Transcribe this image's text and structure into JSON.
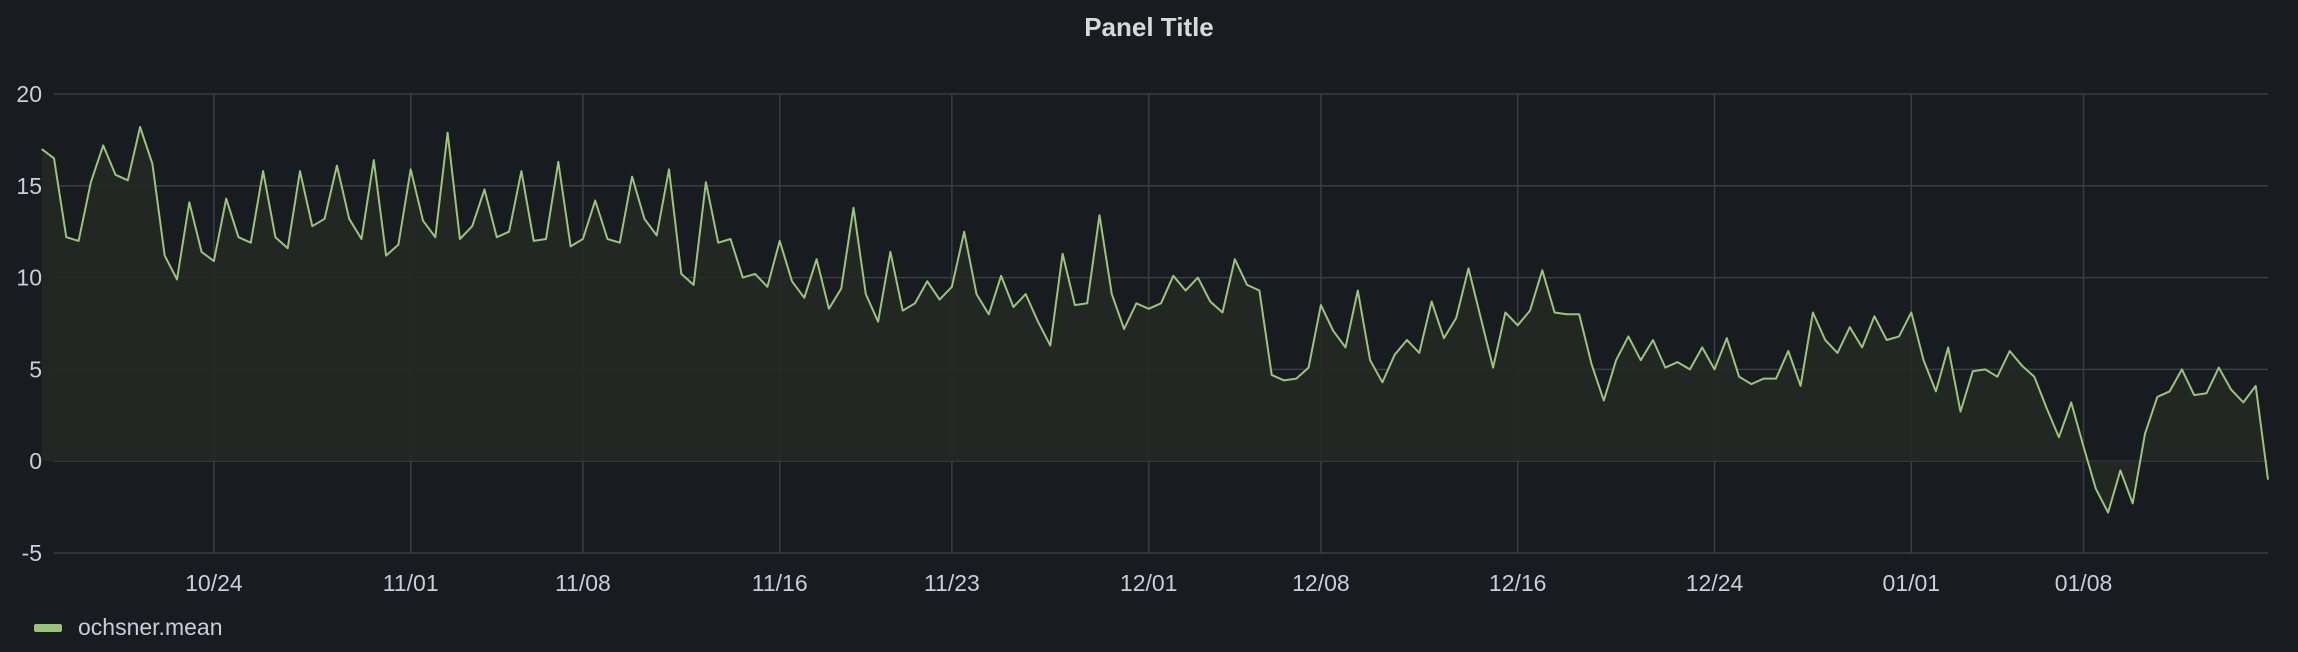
{
  "panel": {
    "title": "Panel Title"
  },
  "colors": {
    "series": "#9ac47a",
    "fill": "#252924",
    "grid": "#3a3d42",
    "background": "#181b1f",
    "text": "#ccccdc"
  },
  "chart_data": {
    "type": "area",
    "title": "Panel Title",
    "xlabel": "",
    "ylabel": "",
    "x_ticks": [
      "10/24",
      "11/01",
      "11/08",
      "11/16",
      "11/23",
      "12/01",
      "12/08",
      "12/16",
      "12/24",
      "01/01",
      "01/08"
    ],
    "y_ticks": [
      "20",
      "15",
      "10",
      "5",
      "0",
      "-5"
    ],
    "ylim": [
      -5,
      20
    ],
    "xlim": [
      "2022-10-17T12:00",
      "2023-01-15T12:00"
    ],
    "grid": true,
    "legend": "bottom-left",
    "series": [
      {
        "name": "ochsner.mean",
        "points": [
          [
            "2022-10-17",
            17
          ],
          [
            "2022-10-17T12:00",
            16.5
          ],
          [
            "2022-10-18",
            12.2
          ],
          [
            "2022-10-18T12:00",
            12
          ],
          [
            "2022-10-19",
            15.2
          ],
          [
            "2022-10-19T12:00",
            17.2
          ],
          [
            "2022-10-20",
            15.6
          ],
          [
            "2022-10-20T12:00",
            15.3
          ],
          [
            "2022-10-21",
            18.2
          ],
          [
            "2022-10-21T12:00",
            16.2
          ],
          [
            "2022-10-22",
            11.2
          ],
          [
            "2022-10-22T12:00",
            9.9
          ],
          [
            "2022-10-23",
            14.1
          ],
          [
            "2022-10-23T12:00",
            11.4
          ],
          [
            "2022-10-24",
            10.9
          ],
          [
            "2022-10-24T12:00",
            14.3
          ],
          [
            "2022-10-25",
            12.2
          ],
          [
            "2022-10-25T12:00",
            11.9
          ],
          [
            "2022-10-26",
            15.8
          ],
          [
            "2022-10-26T12:00",
            12.2
          ],
          [
            "2022-10-27",
            11.6
          ],
          [
            "2022-10-27T12:00",
            15.8
          ],
          [
            "2022-10-28",
            12.8
          ],
          [
            "2022-10-28T12:00",
            13.2
          ],
          [
            "2022-10-29",
            16.1
          ],
          [
            "2022-10-29T12:00",
            13.2
          ],
          [
            "2022-10-30",
            12.1
          ],
          [
            "2022-10-30T12:00",
            16.4
          ],
          [
            "2022-10-31",
            11.2
          ],
          [
            "2022-10-31T12:00",
            11.8
          ],
          [
            "2022-11-01",
            15.9
          ],
          [
            "2022-11-01T12:00",
            13.1
          ],
          [
            "2022-11-02",
            12.2
          ],
          [
            "2022-11-02T12:00",
            17.9
          ],
          [
            "2022-11-03",
            12.1
          ],
          [
            "2022-11-03T12:00",
            12.8
          ],
          [
            "2022-11-04",
            14.8
          ],
          [
            "2022-11-04T12:00",
            12.2
          ],
          [
            "2022-11-05",
            12.5
          ],
          [
            "2022-11-05T12:00",
            15.8
          ],
          [
            "2022-11-06",
            12
          ],
          [
            "2022-11-06T12:00",
            12.1
          ],
          [
            "2022-11-07",
            16.3
          ],
          [
            "2022-11-07T12:00",
            11.7
          ],
          [
            "2022-11-08",
            12.1
          ],
          [
            "2022-11-08T12:00",
            14.2
          ],
          [
            "2022-11-09",
            12.1
          ],
          [
            "2022-11-09T12:00",
            11.9
          ],
          [
            "2022-11-10",
            15.5
          ],
          [
            "2022-11-10T12:00",
            13.2
          ],
          [
            "2022-11-11",
            12.3
          ],
          [
            "2022-11-11T12:00",
            15.9
          ],
          [
            "2022-11-12",
            10.2
          ],
          [
            "2022-11-12T12:00",
            9.6
          ],
          [
            "2022-11-13",
            15.2
          ],
          [
            "2022-11-13T12:00",
            11.9
          ],
          [
            "2022-11-14",
            12.1
          ],
          [
            "2022-11-14T12:00",
            10
          ],
          [
            "2022-11-15",
            10.2
          ],
          [
            "2022-11-15T12:00",
            9.5
          ],
          [
            "2022-11-16",
            12
          ],
          [
            "2022-11-16T12:00",
            9.8
          ],
          [
            "2022-11-17",
            8.9
          ],
          [
            "2022-11-17T12:00",
            11
          ],
          [
            "2022-11-18",
            8.3
          ],
          [
            "2022-11-18T12:00",
            9.4
          ],
          [
            "2022-11-19",
            13.8
          ],
          [
            "2022-11-19T12:00",
            9.1
          ],
          [
            "2022-11-20",
            7.6
          ],
          [
            "2022-11-20T12:00",
            11.4
          ],
          [
            "2022-11-21",
            8.2
          ],
          [
            "2022-11-21T12:00",
            8.6
          ],
          [
            "2022-11-22",
            9.8
          ],
          [
            "2022-11-22T12:00",
            8.8
          ],
          [
            "2022-11-23",
            9.5
          ],
          [
            "2022-11-23T12:00",
            12.5
          ],
          [
            "2022-11-24",
            9.1
          ],
          [
            "2022-11-24T12:00",
            8
          ],
          [
            "2022-11-25",
            10.1
          ],
          [
            "2022-11-25T12:00",
            8.4
          ],
          [
            "2022-11-26",
            9.1
          ],
          [
            "2022-11-26T12:00",
            7.6
          ],
          [
            "2022-11-27",
            6.3
          ],
          [
            "2022-11-27T12:00",
            11.3
          ],
          [
            "2022-11-28",
            8.5
          ],
          [
            "2022-11-28T12:00",
            8.6
          ],
          [
            "2022-11-29",
            13.4
          ],
          [
            "2022-11-29T12:00",
            9.1
          ],
          [
            "2022-11-30",
            7.2
          ],
          [
            "2022-11-30T12:00",
            8.6
          ],
          [
            "2022-12-01",
            8.3
          ],
          [
            "2022-12-01T12:00",
            8.6
          ],
          [
            "2022-12-02",
            10.1
          ],
          [
            "2022-12-02T12:00",
            9.3
          ],
          [
            "2022-12-03",
            10
          ],
          [
            "2022-12-03T12:00",
            8.7
          ],
          [
            "2022-12-04",
            8.1
          ],
          [
            "2022-12-04T12:00",
            11
          ],
          [
            "2022-12-05",
            9.6
          ],
          [
            "2022-12-05T12:00",
            9.3
          ],
          [
            "2022-12-06",
            4.7
          ],
          [
            "2022-12-06T12:00",
            4.4
          ],
          [
            "2022-12-07",
            4.5
          ],
          [
            "2022-12-07T12:00",
            5.1
          ],
          [
            "2022-12-08",
            8.5
          ],
          [
            "2022-12-08T12:00",
            7.1
          ],
          [
            "2022-12-09",
            6.2
          ],
          [
            "2022-12-09T12:00",
            9.3
          ],
          [
            "2022-12-10",
            5.5
          ],
          [
            "2022-12-10T12:00",
            4.3
          ],
          [
            "2022-12-11",
            5.8
          ],
          [
            "2022-12-11T12:00",
            6.6
          ],
          [
            "2022-12-12",
            5.9
          ],
          [
            "2022-12-12T12:00",
            8.7
          ],
          [
            "2022-12-13",
            6.7
          ],
          [
            "2022-12-13T12:00",
            7.8
          ],
          [
            "2022-12-14",
            10.5
          ],
          [
            "2022-12-14T12:00",
            7.8
          ],
          [
            "2022-12-15",
            5.1
          ],
          [
            "2022-12-15T12:00",
            8.1
          ],
          [
            "2022-12-16",
            7.4
          ],
          [
            "2022-12-16T12:00",
            8.2
          ],
          [
            "2022-12-17",
            10.4
          ],
          [
            "2022-12-17T12:00",
            8.1
          ],
          [
            "2022-12-18",
            8
          ],
          [
            "2022-12-18T12:00",
            8
          ],
          [
            "2022-12-19",
            5.3
          ],
          [
            "2022-12-19T12:00",
            3.3
          ],
          [
            "2022-12-20",
            5.5
          ],
          [
            "2022-12-20T12:00",
            6.8
          ],
          [
            "2022-12-21",
            5.5
          ],
          [
            "2022-12-21T12:00",
            6.6
          ],
          [
            "2022-12-22",
            5.1
          ],
          [
            "2022-12-22T12:00",
            5.4
          ],
          [
            "2022-12-23",
            5
          ],
          [
            "2022-12-23T12:00",
            6.2
          ],
          [
            "2022-12-24",
            5
          ],
          [
            "2022-12-24T12:00",
            6.7
          ],
          [
            "2022-12-25",
            4.6
          ],
          [
            "2022-12-25T12:00",
            4.2
          ],
          [
            "2022-12-26",
            4.5
          ],
          [
            "2022-12-26T12:00",
            4.5
          ],
          [
            "2022-12-27",
            6
          ],
          [
            "2022-12-27T12:00",
            4.1
          ],
          [
            "2022-12-28",
            8.1
          ],
          [
            "2022-12-28T12:00",
            6.6
          ],
          [
            "2022-12-29",
            5.9
          ],
          [
            "2022-12-29T12:00",
            7.3
          ],
          [
            "2022-12-30",
            6.2
          ],
          [
            "2022-12-30T12:00",
            7.9
          ],
          [
            "2022-12-31",
            6.6
          ],
          [
            "2022-12-31T12:00",
            6.8
          ],
          [
            "2023-01-01",
            8.1
          ],
          [
            "2023-01-01T12:00",
            5.5
          ],
          [
            "2023-01-02",
            3.8
          ],
          [
            "2023-01-02T12:00",
            6.2
          ],
          [
            "2023-01-03",
            2.7
          ],
          [
            "2023-01-03T12:00",
            4.9
          ],
          [
            "2023-01-04",
            5
          ],
          [
            "2023-01-04T12:00",
            4.6
          ],
          [
            "2023-01-05",
            6
          ],
          [
            "2023-01-05T12:00",
            5.2
          ],
          [
            "2023-01-06",
            4.6
          ],
          [
            "2023-01-06T12:00",
            2.9
          ],
          [
            "2023-01-07",
            1.3
          ],
          [
            "2023-01-07T12:00",
            3.2
          ],
          [
            "2023-01-08",
            0.8
          ],
          [
            "2023-01-08T12:00",
            -1.5
          ],
          [
            "2023-01-09",
            -2.8
          ],
          [
            "2023-01-09T12:00",
            -0.5
          ],
          [
            "2023-01-10",
            -2.3
          ],
          [
            "2023-01-10T12:00",
            1.5
          ],
          [
            "2023-01-11",
            3.5
          ],
          [
            "2023-01-11T12:00",
            3.8
          ],
          [
            "2023-01-12",
            5
          ],
          [
            "2023-01-12T12:00",
            3.6
          ],
          [
            "2023-01-13",
            3.7
          ],
          [
            "2023-01-13T12:00",
            5.1
          ],
          [
            "2023-01-14",
            3.9
          ],
          [
            "2023-01-14T12:00",
            3.2
          ],
          [
            "2023-01-15",
            4.1
          ],
          [
            "2023-01-15T12:00",
            -1
          ]
        ]
      }
    ]
  }
}
